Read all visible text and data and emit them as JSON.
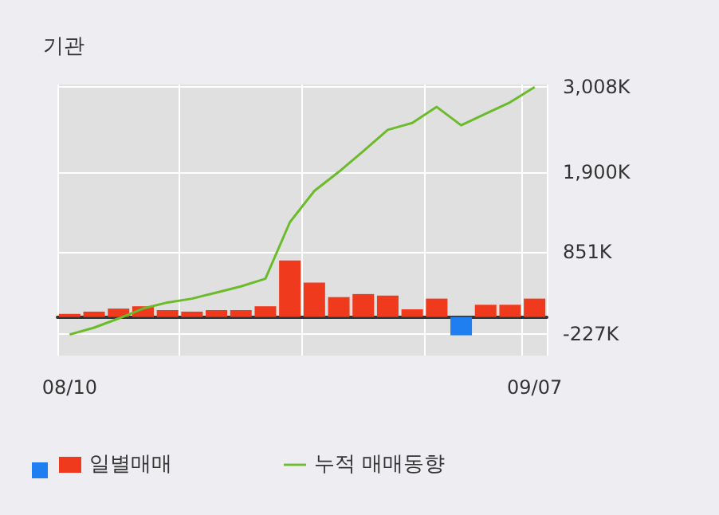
{
  "chart_data": {
    "type": "bar",
    "title": "기관",
    "categories": [
      "08/10",
      null,
      null,
      null,
      null,
      null,
      null,
      null,
      null,
      null,
      null,
      null,
      null,
      null,
      null,
      null,
      null,
      null,
      null,
      "09/07"
    ],
    "series": [
      {
        "name": "일별매매",
        "color": "#f03a1e",
        "colors": [
          "#f03a1e",
          "#f03a1e",
          "#f03a1e",
          "#f03a1e",
          "#f03a1e",
          "#f03a1e",
          "#f03a1e",
          "#f03a1e",
          "#f03a1e",
          "#f03a1e",
          "#f03a1e",
          "#f03a1e",
          "#f03a1e",
          "#f03a1e",
          "#f03a1e",
          "#f03a1e",
          "#1f7ff0",
          "#f03a1e",
          "#f03a1e",
          "#f03a1e"
        ],
        "values": [
          40,
          70,
          110,
          140,
          90,
          70,
          90,
          90,
          140,
          740,
          450,
          260,
          300,
          280,
          100,
          240,
          -240,
          160,
          160,
          240
        ]
      },
      {
        "name": "누적 매매동향",
        "type": "line",
        "color": "#6cbb2a",
        "values": [
          -230,
          -140,
          -20,
          110,
          190,
          240,
          320,
          400,
          500,
          1240,
          1650,
          1900,
          2170,
          2450,
          2540,
          2750,
          2510,
          2660,
          2810,
          3010
        ]
      }
    ],
    "ylim": [
      -505,
      3043
    ],
    "yticks": [
      {
        "value": -227,
        "label": "-227K"
      },
      {
        "value": 851,
        "label": "851K"
      },
      {
        "value": 1900,
        "label": "1,900K"
      },
      {
        "value": 3008,
        "label": "3,008K"
      }
    ],
    "grid": true,
    "legend": "bottom",
    "marker": "none",
    "line_style": "solid"
  }
}
